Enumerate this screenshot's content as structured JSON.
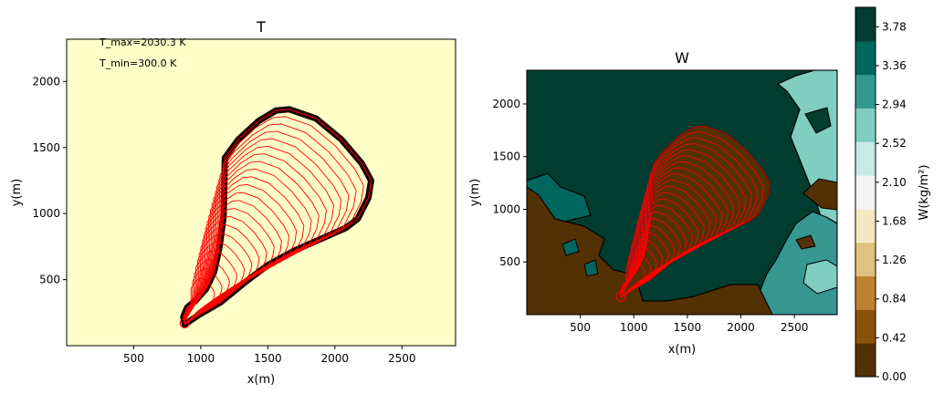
{
  "chart_data": [
    {
      "type": "contour",
      "title": "T",
      "xlabel": "x(m)",
      "ylabel": "y(m)",
      "xlim": [
        0,
        2900
      ],
      "ylim": [
        0,
        2320
      ],
      "xticks": [
        500,
        1000,
        1500,
        2000,
        2500
      ],
      "yticks": [
        500,
        1000,
        1500,
        2000
      ],
      "annotations": [
        "T_max=2030.3 K",
        "T_min=300.0 K"
      ],
      "background_color": "#fffdc8",
      "contour_color": "#ff0000",
      "burned_band_color": "#1a0000",
      "ignition_point": [
        880,
        170
      ],
      "fire_perimeter": [
        [
          880,
          160
        ],
        [
          870,
          220
        ],
        [
          900,
          290
        ],
        [
          960,
          340
        ],
        [
          1040,
          430
        ],
        [
          1100,
          560
        ],
        [
          1140,
          750
        ],
        [
          1170,
          980
        ],
        [
          1175,
          1200
        ],
        [
          1180,
          1420
        ],
        [
          1280,
          1560
        ],
        [
          1430,
          1700
        ],
        [
          1560,
          1780
        ],
        [
          1660,
          1790
        ],
        [
          1860,
          1720
        ],
        [
          2050,
          1560
        ],
        [
          2200,
          1380
        ],
        [
          2270,
          1250
        ],
        [
          2250,
          1120
        ],
        [
          2170,
          960
        ],
        [
          2080,
          890
        ],
        [
          1900,
          810
        ],
        [
          1700,
          720
        ],
        [
          1500,
          610
        ],
        [
          1330,
          480
        ],
        [
          1150,
          330
        ],
        [
          980,
          230
        ],
        [
          880,
          160
        ]
      ],
      "inner_contour_count": 22
    },
    {
      "type": "contourf",
      "title": "W",
      "xlabel": "x(m)",
      "ylabel": "y(m)",
      "xlim": [
        0,
        2900
      ],
      "ylim": [
        0,
        2320
      ],
      "xticks": [
        500,
        1000,
        1500,
        2000,
        2500
      ],
      "yticks": [
        500,
        1000,
        1500,
        2000
      ],
      "colorbar": {
        "label": "W(kg/m²)",
        "ticks": [
          "0.00",
          "0.42",
          "0.84",
          "1.26",
          "1.68",
          "2.10",
          "2.52",
          "2.94",
          "3.36",
          "3.78"
        ],
        "range": [
          0,
          3.99
        ],
        "colors": [
          "#543005",
          "#8c510a",
          "#bf812d",
          "#dfc27d",
          "#f6e8c3",
          "#f5f5f5",
          "#c7eae5",
          "#80cdc1",
          "#35978f",
          "#01665e",
          "#003c30"
        ]
      },
      "dominant_value": 3.99,
      "regions": [
        {
          "value": 0.21,
          "color": "#543005"
        },
        {
          "value": 2.73,
          "color": "#80cdc1"
        },
        {
          "value": 3.15,
          "color": "#35978f"
        },
        {
          "value": 3.57,
          "color": "#01665e"
        },
        {
          "value": 3.99,
          "color": "#003c30"
        }
      ],
      "burned_region_color": "#543005",
      "contour_color": "#ff0000"
    }
  ]
}
